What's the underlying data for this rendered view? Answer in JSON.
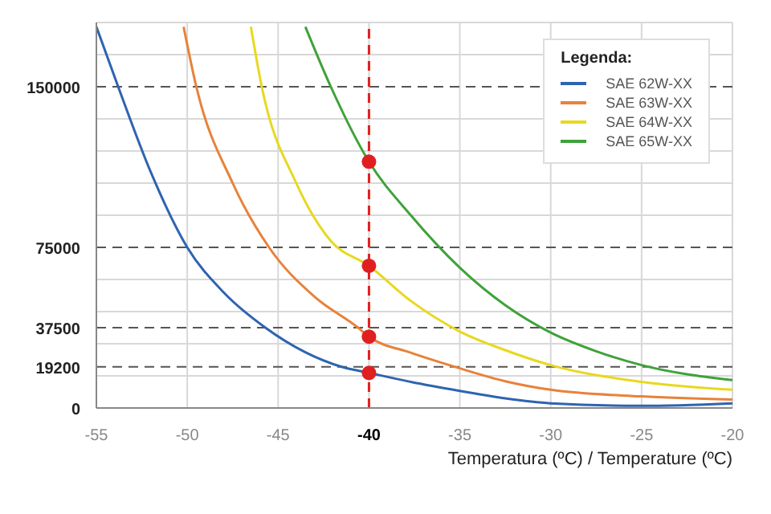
{
  "chart_data": {
    "type": "line",
    "xlabel": "Temperatura (ºC) / Temperature (ºC)",
    "legend_title": "Legenda:",
    "legend": "top right",
    "grid": true,
    "line_style": "solid",
    "xlim": [
      -55,
      -20
    ],
    "xticks": [
      -55,
      -50,
      -45,
      -40,
      -35,
      -30,
      -25,
      -20
    ],
    "ylim": [
      0,
      180000
    ],
    "yticks": [
      0,
      {
        "value": 15000,
        "label": null
      },
      {
        "value": 19200,
        "label": "19200"
      },
      {
        "value": 30000,
        "label": null
      },
      {
        "value": 37500,
        "label": "37500"
      },
      {
        "value": 45000,
        "label": null
      },
      {
        "value": 60000,
        "label": null
      },
      75000,
      {
        "value": 90000,
        "label": null
      },
      {
        "value": 105000,
        "label": null
      },
      {
        "value": 120000,
        "label": null
      },
      {
        "value": 135000,
        "label": null
      },
      150000,
      {
        "value": 165000,
        "label": null
      },
      {
        "value": 180000,
        "label": null
      }
    ],
    "ref_lines": [
      {
        "axis": "x",
        "value": -40,
        "color": "#e02020",
        "line_style": "dashed"
      }
    ],
    "series": [
      {
        "name": "SAE 62W-XX",
        "type": "line",
        "marker": "none",
        "color": "#2e64b0",
        "x": [
          -55,
          -53.8,
          -52,
          -50,
          -48,
          -45.7,
          -43.5,
          -41.5,
          -40,
          -37.7,
          -35,
          -32.5,
          -30,
          -25,
          -20
        ],
        "values": [
          178000,
          150000,
          110000,
          75000,
          54000,
          37500,
          26000,
          19200,
          16400,
          12200,
          8000,
          4500,
          2200,
          1000,
          2200
        ]
      },
      {
        "name": "SAE 63W-XX",
        "type": "line",
        "marker": "none",
        "color": "#e8823a",
        "x": [
          -50.2,
          -49.5,
          -47.5,
          -45.5,
          -43,
          -40.6,
          -40,
          -37.7,
          -35,
          -32.5,
          -30,
          -25,
          -20
        ],
        "values": [
          178000,
          150000,
          105000,
          75000,
          52000,
          37500,
          33300,
          25800,
          18500,
          12500,
          8500,
          5400,
          3900
        ]
      },
      {
        "name": "SAE 64W-XX",
        "type": "line",
        "marker": "none",
        "color": "#e8d820",
        "x": [
          -46.5,
          -45.9,
          -44,
          -42.1,
          -40,
          -37.7,
          -35,
          -32.5,
          -30,
          -25,
          -20
        ],
        "values": [
          178000,
          150000,
          105000,
          78000,
          66400,
          50000,
          35700,
          27000,
          20000,
          12200,
          8500
        ]
      },
      {
        "name": "SAE 65W-XX",
        "type": "line",
        "marker": "none",
        "color": "#3fa23a",
        "x": [
          -43.5,
          -42.1,
          -40,
          -37.7,
          -35,
          -32.5,
          -30,
          -27.5,
          -25,
          -20
        ],
        "values": [
          178000,
          150000,
          115000,
          90000,
          65500,
          48000,
          35200,
          26500,
          20000,
          13000
        ]
      },
      {
        "type": "scatter",
        "marker": "circle",
        "color": "#e02020",
        "x": [
          -40,
          -40,
          -40,
          -40
        ],
        "values": [
          16400,
          33300,
          66400,
          115000
        ]
      }
    ]
  }
}
